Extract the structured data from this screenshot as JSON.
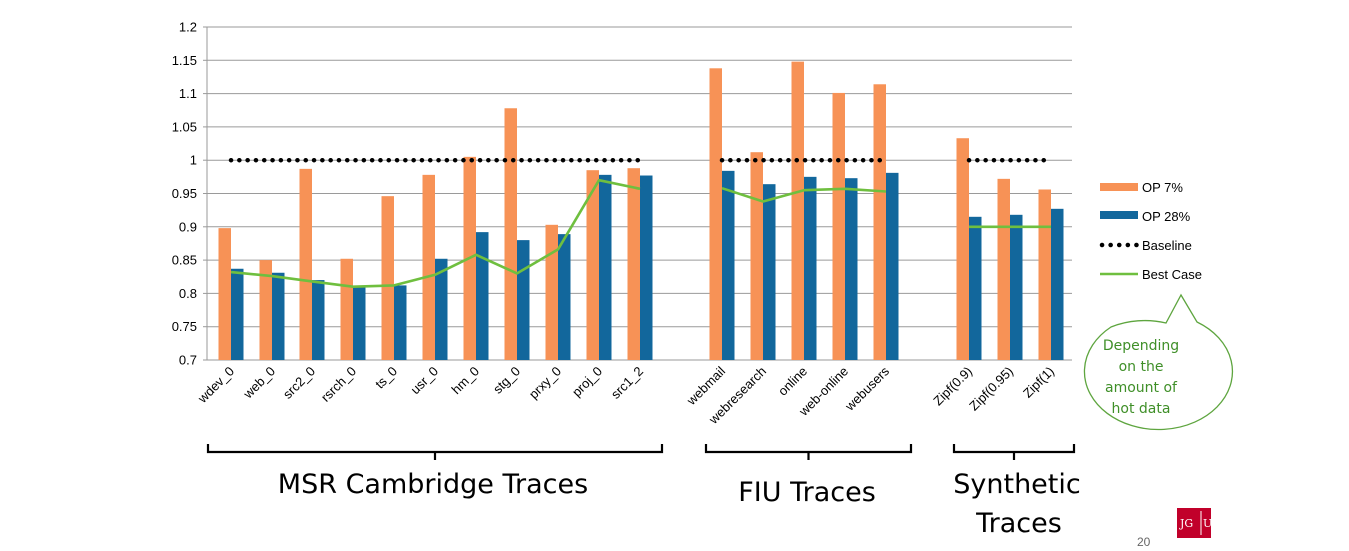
{
  "chart_data": {
    "type": "bar",
    "ylim": [
      0.7,
      1.2
    ],
    "yticks": [
      "0.7",
      "0.75",
      "0.8",
      "0.85",
      "0.9",
      "0.95",
      "1",
      "1.05",
      "1.1",
      "1.15",
      "1.2"
    ],
    "grid": true,
    "legend_position": "right",
    "categories": [
      "wdev_0",
      "web_0",
      "src2_0",
      "rsrch_0",
      "ts_0",
      "usr_0",
      "hm_0",
      "stg_0",
      "prxy_0",
      "proj_0",
      "src1_2",
      "webmail",
      "webresearch",
      "online",
      "web-online",
      "webusers",
      "Zipf(0.9)",
      "Zipf(0.95)",
      "Zipf(1)"
    ],
    "series": [
      {
        "name": "OP 7%",
        "values": [
          0.898,
          0.85,
          0.987,
          0.852,
          0.946,
          0.978,
          1.005,
          1.078,
          0.903,
          0.985,
          0.988,
          1.138,
          1.012,
          1.148,
          1.101,
          1.114,
          1.033,
          0.972,
          0.956
        ]
      },
      {
        "name": "OP 28%",
        "values": [
          0.837,
          0.831,
          0.82,
          0.81,
          0.812,
          0.852,
          0.892,
          0.88,
          0.889,
          0.978,
          0.977,
          0.984,
          0.964,
          0.975,
          0.973,
          0.981,
          0.915,
          0.918,
          0.927
        ]
      },
      {
        "name": "Baseline",
        "values": [
          1,
          1,
          1,
          1,
          1,
          1,
          1,
          1,
          1,
          1,
          1,
          1,
          1,
          1,
          1,
          1,
          1,
          1,
          1
        ]
      },
      {
        "name": "Best Case",
        "values": [
          0.832,
          0.826,
          0.818,
          0.81,
          0.812,
          0.828,
          0.858,
          0.83,
          0.866,
          0.97,
          0.957,
          0.958,
          0.938,
          0.955,
          0.957,
          0.953,
          0.9,
          0.9,
          0.9
        ]
      }
    ],
    "groups": [
      {
        "label": "MSR Cambridge Traces",
        "start": 0,
        "end": 10
      },
      {
        "label": "FIU Traces",
        "start": 11,
        "end": 15
      },
      {
        "label": "Synthetic Traces",
        "start": 16,
        "end": 18
      }
    ],
    "annotation": "Depending on the amount of hot data",
    "colors": {
      "op7": "#f79256",
      "op28": "#12679c",
      "baseline": "#000000",
      "best": "#6fbf3f",
      "annotation": "#3f8f28"
    }
  },
  "group_label_lines": {
    "msr": "MSR Cambridge Traces",
    "fiu": "FIU Traces",
    "syn_line1": "Synthetic",
    "syn_line2": "Traces"
  },
  "annotation_lines": [
    "Depending",
    "on the",
    "amount of",
    "hot data"
  ],
  "logo": {
    "left": "JG",
    "right": "U"
  },
  "page_number": "20"
}
